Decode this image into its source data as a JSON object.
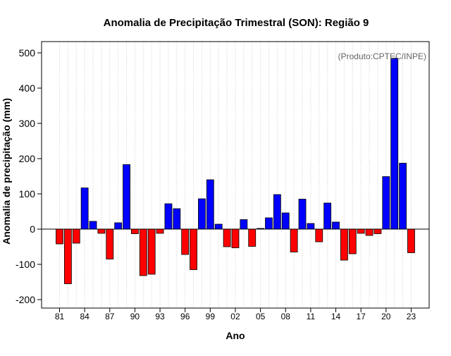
{
  "chart_data": {
    "type": "bar",
    "title": "Anomalia de Precipitação Trimestral (SON): Região 9",
    "xlabel": "Ano",
    "ylabel": "Anomalia de precipitação (mm)",
    "annotation": "(Produto:CPTEC/INPE)",
    "ylim": [
      -200,
      500
    ],
    "yticks": [
      -200,
      -100,
      0,
      100,
      200,
      300,
      400,
      500
    ],
    "grid": "vertical-dotted",
    "x": [
      1981,
      1982,
      1983,
      1984,
      1985,
      1986,
      1987,
      1988,
      1989,
      1990,
      1991,
      1992,
      1993,
      1994,
      1995,
      1996,
      1997,
      1998,
      1999,
      2000,
      2001,
      2002,
      2003,
      2004,
      2005,
      2006,
      2007,
      2008,
      2009,
      2010,
      2011,
      2012,
      2013,
      2014,
      2015,
      2016,
      2017,
      2018,
      2019,
      2020,
      2021,
      2022,
      2023
    ],
    "xtick_labels": [
      {
        "year": 1981,
        "label": "81"
      },
      {
        "year": 1984,
        "label": "84"
      },
      {
        "year": 1987,
        "label": "87"
      },
      {
        "year": 1990,
        "label": "90"
      },
      {
        "year": 1993,
        "label": "93"
      },
      {
        "year": 1996,
        "label": "96"
      },
      {
        "year": 1999,
        "label": "99"
      },
      {
        "year": 2002,
        "label": "02"
      },
      {
        "year": 2005,
        "label": "05"
      },
      {
        "year": 2008,
        "label": "08"
      },
      {
        "year": 2011,
        "label": "11"
      },
      {
        "year": 2014,
        "label": "14"
      },
      {
        "year": 2017,
        "label": "17"
      },
      {
        "year": 2020,
        "label": "20"
      },
      {
        "year": 2023,
        "label": "23"
      }
    ],
    "values": [
      -42,
      -155,
      -40,
      117,
      22,
      -12,
      -85,
      18,
      183,
      -13,
      -132,
      -128,
      -12,
      72,
      58,
      -72,
      -115,
      86,
      140,
      14,
      -50,
      -53,
      27,
      -49,
      2,
      32,
      98,
      46,
      -65,
      85,
      16,
      -36,
      74,
      20,
      -88,
      -70,
      -12,
      -18,
      -13,
      149,
      485,
      187,
      -67
    ],
    "colors": {
      "positive": "#0000ff",
      "negative": "#ff0000",
      "bar_stroke": "#000000",
      "annotation": "#666666"
    }
  }
}
